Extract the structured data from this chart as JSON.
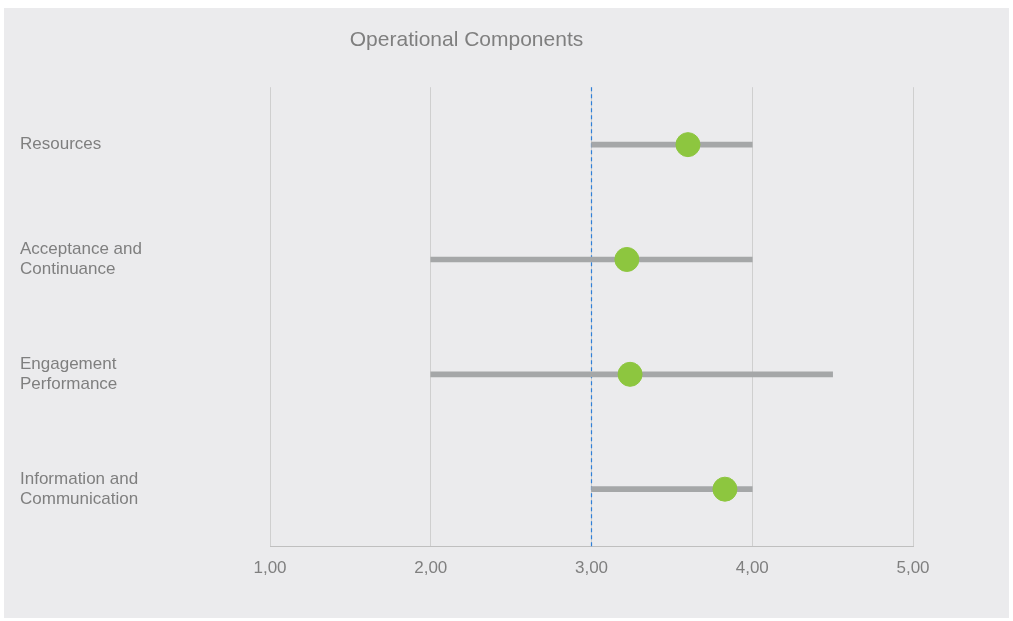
{
  "chart_data": {
    "type": "bar",
    "orientation": "horizontal",
    "title": "Operational Components",
    "categories": [
      "Resources",
      "Acceptance and Continuance",
      "Engagement Performance",
      "Information and Communication"
    ],
    "series": [
      {
        "type": "bar",
        "color": "#a5a7a8",
        "base": [
          3,
          2,
          2,
          3
        ],
        "values": [
          1,
          2,
          2.5,
          1
        ]
      },
      {
        "type": "scatter",
        "color": "#8dc63f",
        "marker": "circle",
        "values": [
          3.6,
          3.22,
          3.24,
          3.83
        ]
      }
    ],
    "xlim": [
      1,
      5
    ],
    "xticks": [
      {
        "value": 1,
        "label": "1,00"
      },
      {
        "value": 2,
        "label": "2,00"
      },
      {
        "value": 3,
        "label": "3,00"
      },
      {
        "value": 4,
        "label": "4,00"
      },
      {
        "value": 5,
        "label": "5,00"
      }
    ],
    "grid": "x",
    "legend": false,
    "ref_lines": [
      {
        "axis": "x",
        "value": 3,
        "color": "#2f7fd8",
        "line_style": "dashed"
      }
    ]
  }
}
